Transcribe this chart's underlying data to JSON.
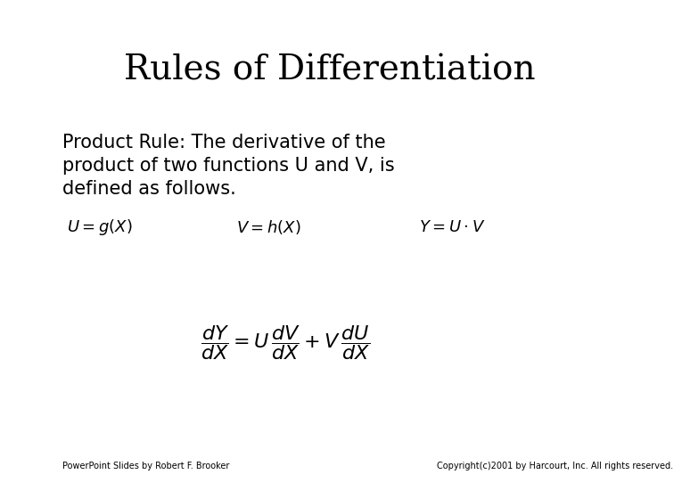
{
  "title": "Rules of Differentiation",
  "body_line1": "Product Rule: The derivative of the",
  "body_line2": "product of two functions U and V, is",
  "body_line3": "defined as follows.",
  "formula_line1_left": "$U = g(X)$",
  "formula_line1_mid": "$V = h(X)$",
  "formula_line1_right": "$Y = U \\cdot V$",
  "formula_line2": "$\\dfrac{dY}{dX} = U\\,\\dfrac{dV}{dX} + V\\,\\dfrac{dU}{dX}$",
  "footer_left": "PowerPoint Slides by Robert F. Brooker",
  "footer_right": "Copyright(c)2001 by Harcourt, Inc. All rights reserved.",
  "bg_color": "#ffffff",
  "text_color": "#000000",
  "title_fontsize": 28,
  "body_fontsize": 15,
  "formula1_fontsize": 13,
  "formula2_fontsize": 16,
  "footer_fontsize": 7
}
